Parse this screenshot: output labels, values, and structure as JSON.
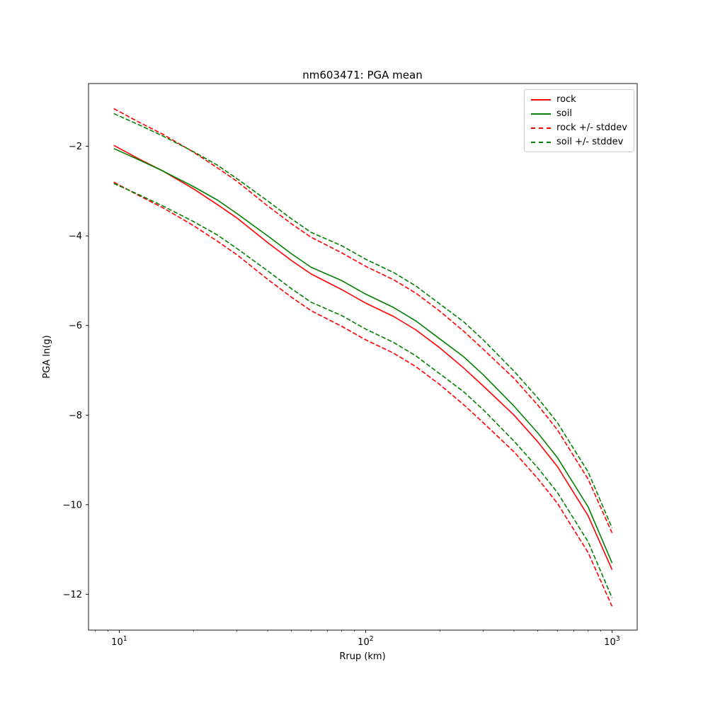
{
  "chart_data": {
    "type": "line",
    "title": "nm603471: PGA mean",
    "xlabel": "Rrup (km)",
    "ylabel": "PGA ln(g)",
    "xscale": "log",
    "yscale": "linear",
    "grid": false,
    "legend_position": "upper right",
    "xlim": [
      7.5,
      1265
    ],
    "ylim": [
      -12.8,
      -0.6
    ],
    "yticks": [
      -2,
      -4,
      -6,
      -8,
      -10,
      -12
    ],
    "xticks": [
      {
        "value": 10,
        "base": "10",
        "exp": "1"
      },
      {
        "value": 100,
        "base": "10",
        "exp": "2"
      },
      {
        "value": 1000,
        "base": "10",
        "exp": "3"
      }
    ],
    "x": [
      9.5,
      12,
      15,
      20,
      25,
      30,
      40,
      50,
      60,
      80,
      100,
      130,
      160,
      200,
      250,
      300,
      400,
      500,
      600,
      800,
      1000
    ],
    "series": [
      {
        "name": "rock",
        "color": "#ff0000",
        "dash": false,
        "values": [
          -1.98,
          -2.28,
          -2.55,
          -2.95,
          -3.3,
          -3.6,
          -4.15,
          -4.55,
          -4.85,
          -5.2,
          -5.5,
          -5.8,
          -6.1,
          -6.5,
          -6.95,
          -7.35,
          -8.0,
          -8.6,
          -9.15,
          -10.25,
          -11.45
        ]
      },
      {
        "name": "soil",
        "color": "#008000",
        "dash": false,
        "values": [
          -2.05,
          -2.3,
          -2.55,
          -2.9,
          -3.2,
          -3.5,
          -4.0,
          -4.4,
          -4.7,
          -5.0,
          -5.3,
          -5.6,
          -5.9,
          -6.3,
          -6.7,
          -7.1,
          -7.8,
          -8.4,
          -8.95,
          -10.05,
          -11.3
        ]
      },
      {
        "name": "rock plus stddev",
        "color": "#ff0000",
        "dash": true,
        "values": [
          -1.16,
          -1.46,
          -1.73,
          -2.13,
          -2.48,
          -2.78,
          -3.33,
          -3.73,
          -4.03,
          -4.38,
          -4.68,
          -4.98,
          -5.28,
          -5.68,
          -6.13,
          -6.53,
          -7.18,
          -7.78,
          -8.33,
          -9.43,
          -10.63
        ]
      },
      {
        "name": "rock minus stddev",
        "color": "#ff0000",
        "dash": true,
        "values": [
          -2.8,
          -3.1,
          -3.37,
          -3.77,
          -4.12,
          -4.42,
          -4.97,
          -5.37,
          -5.67,
          -6.02,
          -6.32,
          -6.62,
          -6.92,
          -7.32,
          -7.77,
          -8.17,
          -8.82,
          -9.42,
          -9.97,
          -11.07,
          -12.27
        ]
      },
      {
        "name": "soil plus stddev",
        "color": "#008000",
        "dash": true,
        "values": [
          -1.27,
          -1.52,
          -1.77,
          -2.12,
          -2.42,
          -2.72,
          -3.22,
          -3.62,
          -3.92,
          -4.22,
          -4.52,
          -4.82,
          -5.12,
          -5.52,
          -5.92,
          -6.32,
          -7.02,
          -7.62,
          -8.17,
          -9.27,
          -10.52
        ]
      },
      {
        "name": "soil minus stddev",
        "color": "#008000",
        "dash": true,
        "values": [
          -2.83,
          -3.08,
          -3.33,
          -3.68,
          -3.98,
          -4.28,
          -4.78,
          -5.18,
          -5.48,
          -5.78,
          -6.08,
          -6.38,
          -6.68,
          -7.08,
          -7.48,
          -7.88,
          -8.58,
          -9.18,
          -9.73,
          -10.83,
          -12.08
        ]
      }
    ],
    "legend": [
      {
        "label": "rock",
        "color": "#ff0000",
        "dash": false
      },
      {
        "label": "soil",
        "color": "#008000",
        "dash": false
      },
      {
        "label": "rock +/- stddev",
        "color": "#ff0000",
        "dash": true
      },
      {
        "label": "soil +/- stddev",
        "color": "#008000",
        "dash": true
      }
    ]
  }
}
